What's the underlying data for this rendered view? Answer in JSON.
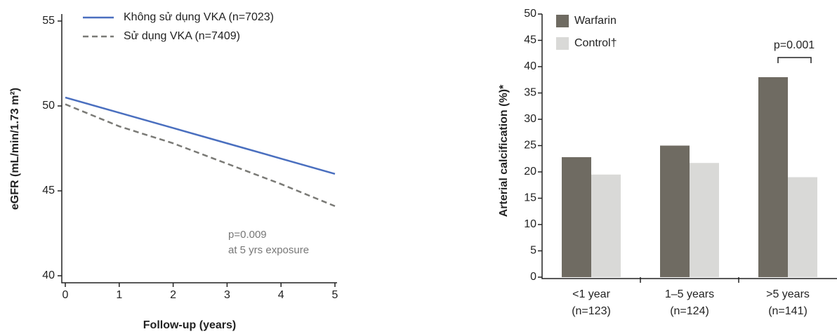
{
  "chart_data": [
    {
      "type": "line",
      "x_label": "Follow-up (years)",
      "y_label": "eGFR (mL/min/1.73 m²)",
      "x": [
        0,
        1,
        2,
        3,
        4,
        5
      ],
      "xlim": [
        0,
        5
      ],
      "xticks": [
        0,
        1,
        2,
        3,
        4,
        5
      ],
      "ylim": [
        40,
        55
      ],
      "yticks": [
        40,
        45,
        50,
        55
      ],
      "series": [
        {
          "name": "Không sử dụng VKA (n=7023)",
          "color": "#4a6fbf",
          "dashed": false,
          "values": [
            50.5,
            49.6,
            48.7,
            47.8,
            46.9,
            46.0
          ]
        },
        {
          "name": "Sử dụng VKA (n=7409)",
          "color": "#7a7a76",
          "dashed": true,
          "values": [
            50.1,
            48.8,
            47.8,
            46.6,
            45.4,
            44.1
          ]
        }
      ],
      "annotations": [
        "p=0.009",
        "at 5 yrs exposure"
      ]
    },
    {
      "type": "bar",
      "y_label": "Arterial calcification (%)*",
      "categories": [
        [
          "<1 year",
          "(n=123)"
        ],
        [
          "1–5 years",
          "(n=124)"
        ],
        [
          ">5 years",
          "(n=141)"
        ]
      ],
      "ylim": [
        0,
        50
      ],
      "yticks": [
        0,
        5,
        10,
        15,
        20,
        25,
        30,
        35,
        40,
        45,
        50
      ],
      "series": [
        {
          "name": "Warfarin",
          "color": "#6f6b62",
          "values": [
            22.8,
            25,
            38
          ]
        },
        {
          "name": "Control†",
          "color": "#d9d9d7",
          "values": [
            19.5,
            21.7,
            19
          ]
        }
      ],
      "annotations": [
        "p=0.001"
      ]
    }
  ]
}
